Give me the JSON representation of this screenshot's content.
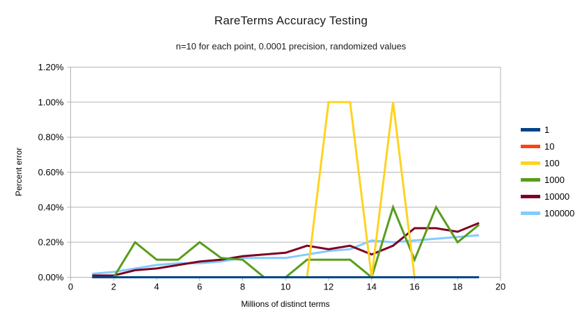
{
  "title": "RareTerms Accuracy Testing",
  "subtitle": "n=10 for each point, 0.0001 precision, randomized values",
  "chart_data": {
    "type": "line",
    "title": "RareTerms Accuracy Testing",
    "subtitle": "n=10 for each point, 0.0001 precision, randomized values",
    "xlabel": "Millions of distinct terms",
    "ylabel": "Percent error",
    "xlim": [
      0,
      20
    ],
    "ylim_percent": [
      0,
      1.2
    ],
    "grid": "horizontal",
    "legend_position": "right",
    "x_ticks": [
      "0",
      "2",
      "4",
      "6",
      "8",
      "10",
      "12",
      "14",
      "16",
      "18",
      "20"
    ],
    "x_tick_values": [
      0,
      2,
      4,
      6,
      8,
      10,
      12,
      14,
      16,
      18,
      20
    ],
    "y_tick_labels": [
      "0.00%",
      "0.20%",
      "0.40%",
      "0.60%",
      "0.80%",
      "1.00%",
      "1.20%"
    ],
    "y_tick_values": [
      0,
      0.2,
      0.4,
      0.6,
      0.8,
      1.0,
      1.2
    ],
    "x": [
      1,
      2,
      3,
      4,
      5,
      6,
      7,
      8,
      9,
      10,
      11,
      12,
      13,
      14,
      15,
      16,
      17,
      18,
      19
    ],
    "series": [
      {
        "name": "1",
        "color": "#004586",
        "values_percent": [
          0,
          0,
          0,
          0,
          0,
          0,
          0,
          0,
          0,
          0,
          0,
          0,
          0,
          0,
          0,
          0,
          0,
          0,
          0
        ]
      },
      {
        "name": "10",
        "color": "#ff420e",
        "values_percent": [
          0,
          0,
          0,
          0,
          0,
          0,
          0,
          0,
          0,
          0,
          0,
          0,
          0,
          0,
          0,
          0,
          0,
          0,
          0
        ]
      },
      {
        "name": "100",
        "color": "#ffd320",
        "values_percent": [
          0,
          0,
          0,
          0,
          0,
          0,
          0,
          0,
          0,
          0,
          0,
          1.0,
          1.0,
          0,
          1.0,
          0,
          0,
          0,
          0
        ]
      },
      {
        "name": "1000",
        "color": "#579d1c",
        "values_percent": [
          0,
          0,
          0.2,
          0.1,
          0.1,
          0.2,
          0.11,
          0.1,
          0,
          0,
          0.1,
          0.1,
          0.1,
          0,
          0.4,
          0.1,
          0.4,
          0.2,
          0.3
        ]
      },
      {
        "name": "10000",
        "color": "#7e0021",
        "values_percent": [
          0.01,
          0.01,
          0.04,
          0.05,
          0.07,
          0.09,
          0.1,
          0.12,
          0.13,
          0.14,
          0.18,
          0.16,
          0.18,
          0.13,
          0.18,
          0.28,
          0.28,
          0.26,
          0.31
        ]
      },
      {
        "name": "100000",
        "color": "#83caff",
        "values_percent": [
          0.02,
          0.03,
          0.05,
          0.07,
          0.08,
          0.08,
          0.09,
          0.11,
          0.11,
          0.11,
          0.13,
          0.15,
          0.16,
          0.21,
          0.2,
          0.21,
          0.22,
          0.23,
          0.24
        ]
      }
    ]
  },
  "colors": {
    "background": "#ffffff",
    "gridline": "#b3b3b3",
    "axis": "#b3b3b3",
    "tick_text": "#000000"
  }
}
